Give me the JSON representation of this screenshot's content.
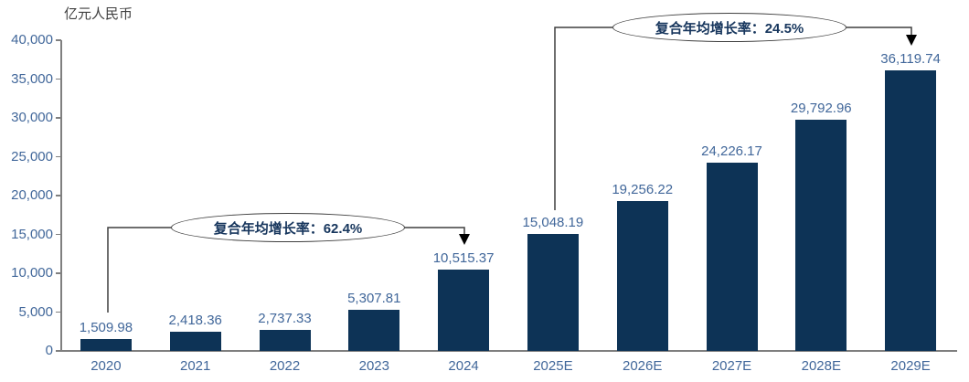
{
  "chart_data": {
    "type": "bar",
    "title": "",
    "unit_label": "亿元人民币",
    "categories": [
      "2020",
      "2021",
      "2022",
      "2023",
      "2024",
      "2025E",
      "2026E",
      "2027E",
      "2028E",
      "2029E"
    ],
    "values": [
      1509.98,
      2418.36,
      2737.33,
      5307.81,
      10515.37,
      15048.19,
      19256.22,
      24226.17,
      29792.96,
      36119.74
    ],
    "value_labels": [
      "1,509.98",
      "2,418.36",
      "2,737.33",
      "5,307.81",
      "10,515.37",
      "15,048.19",
      "19,256.22",
      "24,226.17",
      "29,792.96",
      "36,119.74"
    ],
    "ylim": [
      0,
      40000
    ],
    "ytick_interval": 5000,
    "ytick_labels": [
      "0",
      "5,000",
      "10,000",
      "15,000",
      "20,000",
      "25,000",
      "30,000",
      "35,000",
      "40,000"
    ],
    "grid": "off",
    "legend": "none",
    "annotations": [
      {
        "text": "复合年均增长率：62.4%",
        "from_category": "2020",
        "to_category": "2024"
      },
      {
        "text": "复合年均增长率：24.5%",
        "from_category": "2025E",
        "to_category": "2029E"
      }
    ],
    "colors": {
      "bar": "#0d3356",
      "value_label": "#41679a",
      "axis_label": "#41679a",
      "unit_label": "#3f3f3f",
      "annotation_text": "#17365d",
      "axis_line": "#7f7f7f",
      "connector": "#3f3f3f"
    }
  }
}
